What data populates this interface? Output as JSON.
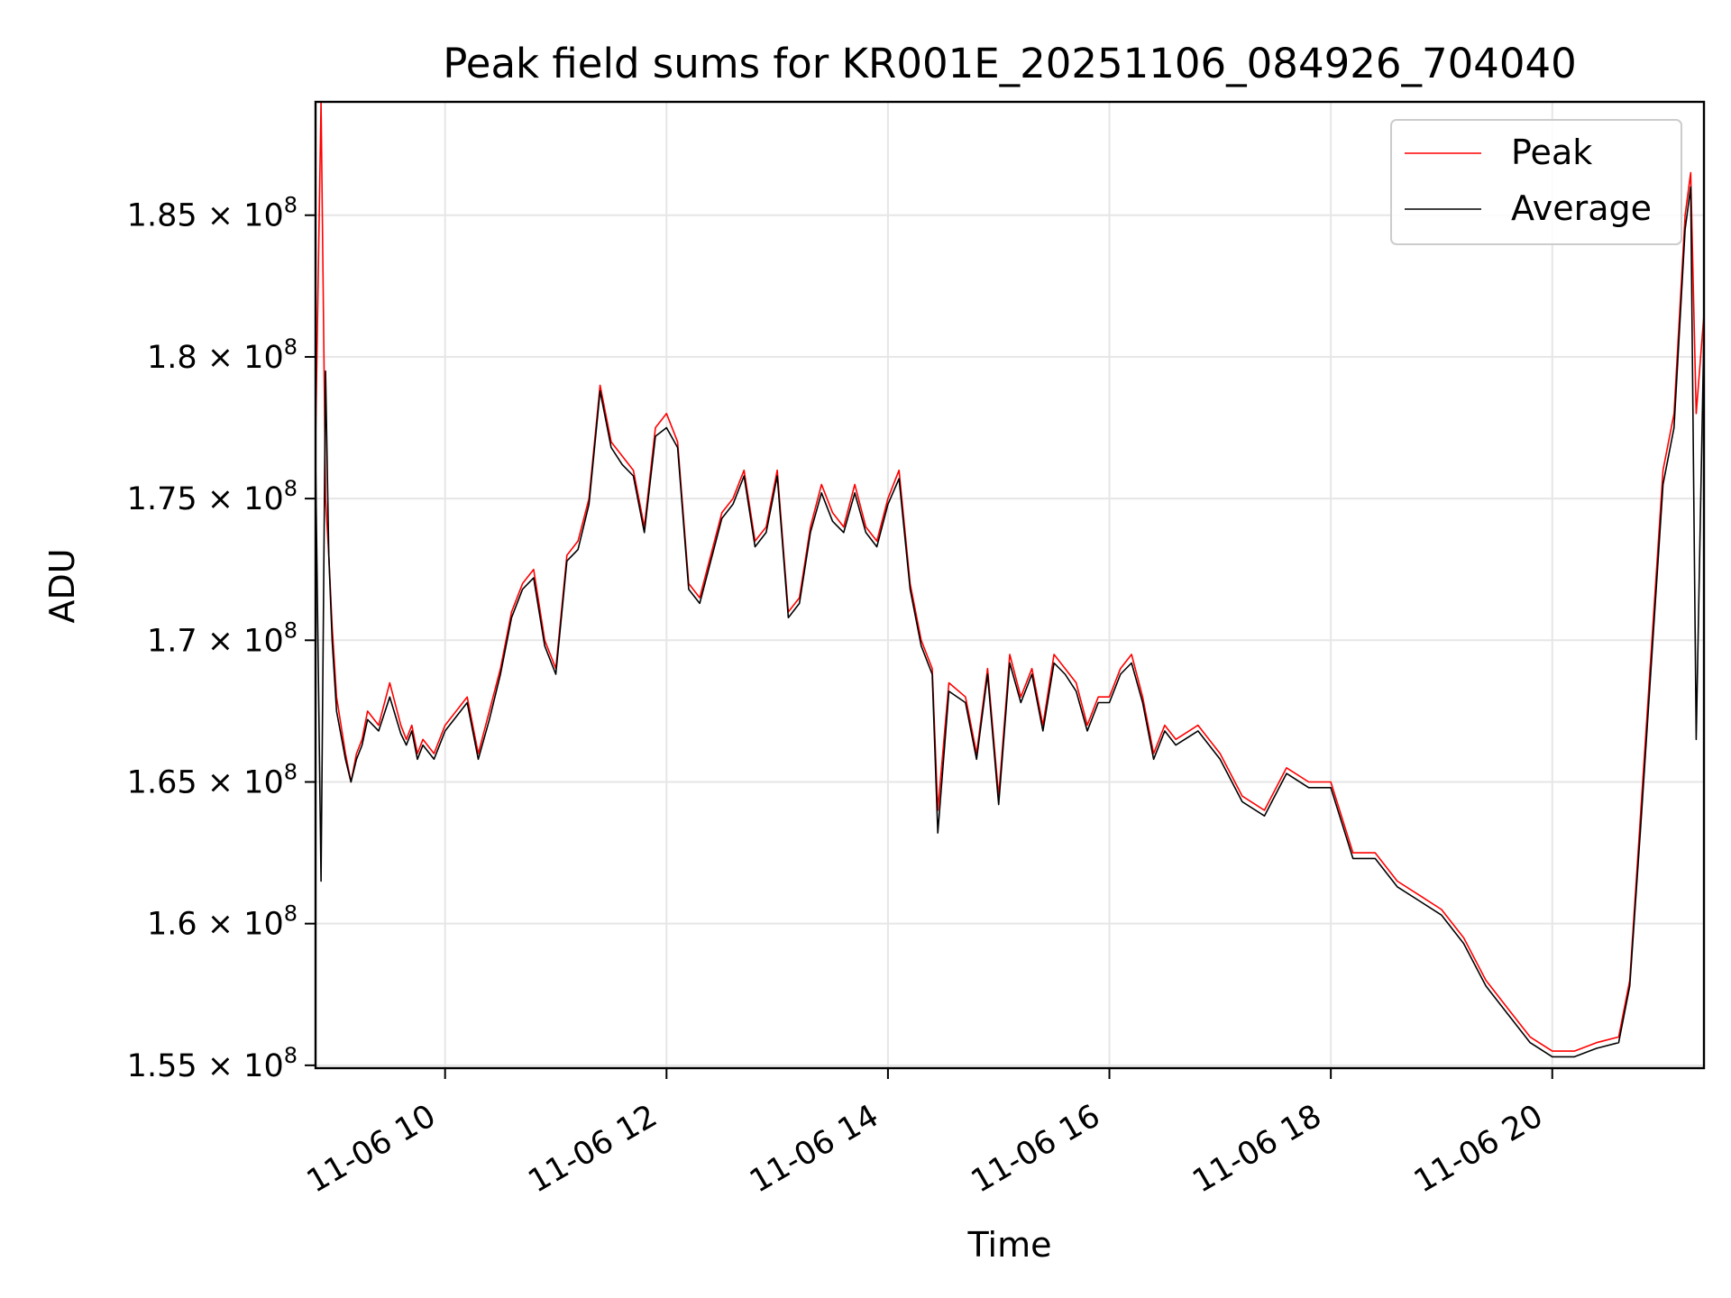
{
  "chart_data": {
    "type": "line",
    "title": "Peak field sums for KR001E_20251106_084926_704040",
    "xlabel": "Time",
    "ylabel": "ADU",
    "x_unit": "hours (Nov 6)",
    "xlim": [
      8.83,
      21.37
    ],
    "ylim": [
      154900000,
      189000000
    ],
    "x_ticks": [
      10,
      12,
      14,
      16,
      18,
      20
    ],
    "x_tick_labels": [
      "11-06 10",
      "11-06 12",
      "11-06 14",
      "11-06 16",
      "11-06 18",
      "11-06 20"
    ],
    "y_ticks": [
      155000000,
      160000000,
      165000000,
      170000000,
      175000000,
      180000000,
      185000000
    ],
    "y_tick_mantissas": [
      "1.55",
      "1.6",
      "1.65",
      "1.7",
      "1.75",
      "1.8",
      "1.85"
    ],
    "y_tick_exponent": "8",
    "grid": true,
    "legend_position": "top-right",
    "series": [
      {
        "name": "Peak",
        "color": "#ff0000",
        "x": [
          8.83,
          8.88,
          8.92,
          8.95,
          8.98,
          9.02,
          9.1,
          9.15,
          9.2,
          9.25,
          9.3,
          9.4,
          9.5,
          9.6,
          9.65,
          9.7,
          9.75,
          9.8,
          9.9,
          10.0,
          10.2,
          10.3,
          10.4,
          10.5,
          10.6,
          10.7,
          10.8,
          10.9,
          11.0,
          11.1,
          11.2,
          11.3,
          11.4,
          11.5,
          11.6,
          11.7,
          11.8,
          11.9,
          12.0,
          12.1,
          12.2,
          12.3,
          12.4,
          12.5,
          12.6,
          12.7,
          12.8,
          12.9,
          13.0,
          13.1,
          13.2,
          13.3,
          13.4,
          13.5,
          13.6,
          13.7,
          13.8,
          13.9,
          14.0,
          14.1,
          14.2,
          14.3,
          14.4,
          14.45,
          14.55,
          14.7,
          14.8,
          14.9,
          15.0,
          15.1,
          15.2,
          15.3,
          15.4,
          15.5,
          15.6,
          15.7,
          15.8,
          15.9,
          16.0,
          16.1,
          16.2,
          16.3,
          16.4,
          16.5,
          16.6,
          16.8,
          17.0,
          17.2,
          17.4,
          17.6,
          17.8,
          18.0,
          18.2,
          18.4,
          18.6,
          18.8,
          19.0,
          19.2,
          19.4,
          19.6,
          19.8,
          20.0,
          20.2,
          20.4,
          20.6,
          20.7,
          20.8,
          20.9,
          21.0,
          21.1,
          21.2,
          21.25,
          21.3,
          21.37
        ],
        "values": [
          177000000,
          189000000,
          175000000,
          173000000,
          170500000,
          168000000,
          166000000,
          165000000,
          166000000,
          166500000,
          167500000,
          167000000,
          168500000,
          167000000,
          166500000,
          167000000,
          166000000,
          166500000,
          166000000,
          167000000,
          168000000,
          166000000,
          167500000,
          169000000,
          171000000,
          172000000,
          172500000,
          170000000,
          169000000,
          173000000,
          173500000,
          175000000,
          179000000,
          177000000,
          176500000,
          176000000,
          174000000,
          177500000,
          178000000,
          177000000,
          172000000,
          171500000,
          173000000,
          174500000,
          175000000,
          176000000,
          173500000,
          174000000,
          176000000,
          171000000,
          171500000,
          174000000,
          175500000,
          174500000,
          174000000,
          175500000,
          174000000,
          173500000,
          175000000,
          176000000,
          172000000,
          170000000,
          169000000,
          164000000,
          168500000,
          168000000,
          166000000,
          169000000,
          164500000,
          169500000,
          168000000,
          169000000,
          167000000,
          169500000,
          169000000,
          168500000,
          167000000,
          168000000,
          168000000,
          169000000,
          169500000,
          168000000,
          166000000,
          167000000,
          166500000,
          167000000,
          166000000,
          164500000,
          164000000,
          165500000,
          165000000,
          165000000,
          162500000,
          162500000,
          161500000,
          161000000,
          160500000,
          159500000,
          158000000,
          157000000,
          156000000,
          155500000,
          155500000,
          155800000,
          156000000,
          158000000,
          164000000,
          170000000,
          176000000,
          178000000,
          185000000,
          186500000,
          178000000,
          181500000
        ]
      },
      {
        "name": "Average",
        "color": "#000000",
        "x": [
          8.83,
          8.88,
          8.92,
          8.95,
          8.98,
          9.02,
          9.1,
          9.15,
          9.2,
          9.25,
          9.3,
          9.4,
          9.5,
          9.6,
          9.65,
          9.7,
          9.75,
          9.8,
          9.9,
          10.0,
          10.2,
          10.3,
          10.4,
          10.5,
          10.6,
          10.7,
          10.8,
          10.9,
          11.0,
          11.1,
          11.2,
          11.3,
          11.4,
          11.5,
          11.6,
          11.7,
          11.8,
          11.9,
          12.0,
          12.1,
          12.2,
          12.3,
          12.4,
          12.5,
          12.6,
          12.7,
          12.8,
          12.9,
          13.0,
          13.1,
          13.2,
          13.3,
          13.4,
          13.5,
          13.6,
          13.7,
          13.8,
          13.9,
          14.0,
          14.1,
          14.2,
          14.3,
          14.4,
          14.45,
          14.55,
          14.7,
          14.8,
          14.9,
          15.0,
          15.1,
          15.2,
          15.3,
          15.4,
          15.5,
          15.6,
          15.7,
          15.8,
          15.9,
          16.0,
          16.1,
          16.2,
          16.3,
          16.4,
          16.5,
          16.6,
          16.8,
          17.0,
          17.2,
          17.4,
          17.6,
          17.8,
          18.0,
          18.2,
          18.4,
          18.6,
          18.8,
          19.0,
          19.2,
          19.4,
          19.6,
          19.8,
          20.0,
          20.2,
          20.4,
          20.6,
          20.7,
          20.8,
          20.9,
          21.0,
          21.1,
          21.2,
          21.25,
          21.3,
          21.37
        ],
        "values": [
          176500000,
          161500000,
          179500000,
          173000000,
          170000000,
          167500000,
          165800000,
          165000000,
          165800000,
          166300000,
          167200000,
          166800000,
          168000000,
          166700000,
          166300000,
          166800000,
          165800000,
          166300000,
          165800000,
          166800000,
          167800000,
          165800000,
          167200000,
          168800000,
          170800000,
          171800000,
          172200000,
          169800000,
          168800000,
          172800000,
          173200000,
          174800000,
          178800000,
          176800000,
          176200000,
          175800000,
          173800000,
          177200000,
          177500000,
          176800000,
          171800000,
          171300000,
          172800000,
          174300000,
          174800000,
          175800000,
          173300000,
          173800000,
          175800000,
          170800000,
          171300000,
          173800000,
          175200000,
          174200000,
          173800000,
          175200000,
          173800000,
          173300000,
          174800000,
          175700000,
          171800000,
          169800000,
          168800000,
          163200000,
          168200000,
          167800000,
          165800000,
          168800000,
          164200000,
          169200000,
          167800000,
          168800000,
          166800000,
          169200000,
          168800000,
          168200000,
          166800000,
          167800000,
          167800000,
          168800000,
          169200000,
          167800000,
          165800000,
          166800000,
          166300000,
          166800000,
          165800000,
          164300000,
          163800000,
          165300000,
          164800000,
          164800000,
          162300000,
          162300000,
          161300000,
          160800000,
          160300000,
          159300000,
          157800000,
          156800000,
          155800000,
          155300000,
          155300000,
          155600000,
          155800000,
          157800000,
          163500000,
          169500000,
          175500000,
          177500000,
          184500000,
          186000000,
          166500000,
          181000000
        ]
      }
    ]
  }
}
